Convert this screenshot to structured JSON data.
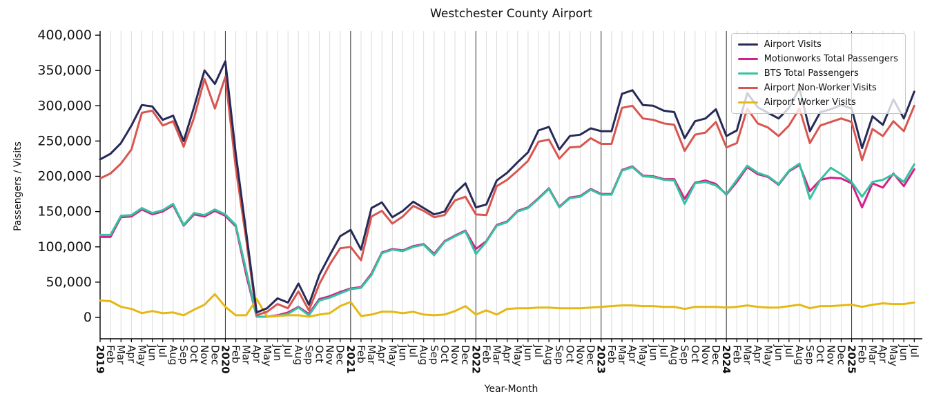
{
  "chart_data": {
    "type": "line",
    "title": "Westchester County Airport",
    "xlabel": "Year-Month",
    "ylabel": "Passengers / Visits",
    "legend_position": "upper right",
    "grid": "vertical gridline at every month; darker vertical line at each January (year boundary); no horizontal gridlines",
    "ylim": [
      0,
      400000
    ],
    "yticks": [
      0,
      50000,
      100000,
      150000,
      200000,
      250000,
      300000,
      350000,
      400000
    ],
    "ytick_labels": [
      "0",
      "50,000",
      "100,000",
      "150,000",
      "200,000",
      "250,000",
      "300,000",
      "350,000",
      "400,000"
    ],
    "x_tick_labels": [
      "2019",
      "Feb",
      "Mar",
      "Apr",
      "May",
      "Jun",
      "Jul",
      "Aug",
      "Sep",
      "Oct",
      "Nov",
      "Dec",
      "2020",
      "Feb",
      "Mar",
      "Apr",
      "May",
      "Jun",
      "Jul",
      "Aug",
      "Sep",
      "Oct",
      "Nov",
      "Dec",
      "2021",
      "Feb",
      "Mar",
      "Apr",
      "May",
      "Jun",
      "Jul",
      "Aug",
      "Sep",
      "Oct",
      "Nov",
      "Dec",
      "2022",
      "Feb",
      "Mar",
      "Apr",
      "May",
      "Jun",
      "Jul",
      "Aug",
      "Sep",
      "Oct",
      "Nov",
      "Dec",
      "2023",
      "Feb",
      "Mar",
      "Apr",
      "May",
      "Jun",
      "Jul",
      "Aug",
      "Sep",
      "Oct",
      "Nov",
      "Dec",
      "2024",
      "Feb",
      "Mar",
      "Apr",
      "May",
      "Jun",
      "Jul",
      "Aug",
      "Sep",
      "Oct",
      "Nov",
      "Dec",
      "2025",
      "Feb",
      "Mar",
      "Apr",
      "May",
      "Jun",
      "Jul"
    ],
    "series": [
      {
        "name": "Airport Visits",
        "color": "#262a56",
        "values": [
          224000,
          232000,
          247000,
          272000,
          301000,
          299000,
          280000,
          286000,
          250000,
          298000,
          350000,
          331000,
          363000,
          232000,
          120000,
          7000,
          13000,
          27000,
          21000,
          48000,
          18000,
          60000,
          88000,
          115000,
          124000,
          96000,
          155000,
          163000,
          142000,
          151000,
          164000,
          155000,
          146000,
          150000,
          176000,
          190000,
          156000,
          160000,
          194000,
          205000,
          220000,
          234000,
          265000,
          270000,
          238000,
          257000,
          259000,
          268000,
          264000,
          264000,
          317000,
          322000,
          301000,
          300000,
          293000,
          291000,
          254000,
          278000,
          282000,
          295000,
          257000,
          265000,
          318000,
          298000,
          290000,
          282000,
          297000,
          325000,
          264000,
          291000,
          295000,
          301000,
          296000,
          240000,
          285000,
          273000,
          309000,
          282000,
          320000
        ]
      },
      {
        "name": "Motionworks Total Passengers",
        "color": "#d4208c",
        "values": [
          114000,
          114000,
          142000,
          143000,
          153000,
          146000,
          150000,
          159000,
          130000,
          146000,
          143000,
          151000,
          144000,
          129000,
          60000,
          1000,
          1000,
          3000,
          7000,
          15000,
          5000,
          26000,
          30000,
          36000,
          41000,
          43000,
          62000,
          92000,
          97000,
          95000,
          101000,
          104000,
          90000,
          108000,
          116000,
          123000,
          97000,
          108000,
          131000,
          136000,
          151000,
          156000,
          169000,
          183000,
          157000,
          170000,
          172000,
          182000,
          175000,
          175000,
          209000,
          214000,
          201000,
          200000,
          196000,
          196000,
          168000,
          191000,
          194000,
          189000,
          174000,
          192000,
          213000,
          203000,
          199000,
          188000,
          207000,
          216000,
          179000,
          195000,
          198000,
          197000,
          190000,
          156000,
          190000,
          184000,
          204000,
          186000,
          210000
        ]
      },
      {
        "name": "BTS Total Passengers",
        "color": "#35c2a0",
        "values": [
          117000,
          117000,
          144000,
          145000,
          155000,
          148000,
          152000,
          161000,
          131000,
          148000,
          145000,
          153000,
          146000,
          131000,
          66000,
          1000,
          1000,
          2000,
          5000,
          14000,
          3000,
          24000,
          28000,
          34000,
          40000,
          42000,
          60000,
          91000,
          96000,
          94000,
          100000,
          103000,
          88000,
          107000,
          115000,
          122000,
          90000,
          107000,
          130000,
          135000,
          150000,
          155000,
          168000,
          182000,
          156000,
          169000,
          171000,
          181000,
          174000,
          174000,
          208000,
          213000,
          200000,
          199000,
          195000,
          194000,
          161000,
          190000,
          192000,
          187000,
          175000,
          195000,
          215000,
          205000,
          200000,
          189000,
          208000,
          218000,
          168000,
          195000,
          212000,
          203000,
          192000,
          171000,
          192000,
          195000,
          203000,
          192000,
          217000
        ]
      },
      {
        "name": "Airport Non-Worker Visits",
        "color": "#d9554f",
        "values": [
          197000,
          204000,
          218000,
          238000,
          290000,
          293000,
          272000,
          278000,
          242000,
          283000,
          338000,
          296000,
          341000,
          212000,
          110000,
          3000,
          8000,
          19000,
          13000,
          37000,
          10000,
          47000,
          75000,
          98000,
          100000,
          81000,
          143000,
          151000,
          133000,
          143000,
          158000,
          151000,
          142000,
          145000,
          166000,
          171000,
          146000,
          145000,
          186000,
          195000,
          208000,
          222000,
          249000,
          252000,
          225000,
          241000,
          242000,
          254000,
          246000,
          246000,
          297000,
          300000,
          282000,
          280000,
          275000,
          273000,
          236000,
          259000,
          262000,
          277000,
          241000,
          247000,
          296000,
          275000,
          269000,
          257000,
          272000,
          296000,
          247000,
          272000,
          277000,
          282000,
          277000,
          223000,
          267000,
          257000,
          278000,
          264000,
          300000
        ]
      },
      {
        "name": "Airport Worker Visits",
        "color": "#e5b813",
        "values": [
          24000,
          23000,
          15000,
          12000,
          6000,
          9000,
          6000,
          7000,
          3000,
          11000,
          18000,
          33000,
          15000,
          3000,
          3000,
          26000,
          1000,
          2000,
          3000,
          3000,
          1000,
          4000,
          6000,
          16000,
          22000,
          2000,
          4000,
          8000,
          8000,
          6000,
          8000,
          4000,
          3000,
          4000,
          9000,
          16000,
          4000,
          10000,
          4000,
          12000,
          13000,
          13000,
          14000,
          14000,
          13000,
          13000,
          13000,
          14000,
          15000,
          16000,
          17000,
          17000,
          16000,
          16000,
          15000,
          15000,
          12000,
          15000,
          15000,
          15000,
          14000,
          15000,
          17000,
          15000,
          14000,
          14000,
          16000,
          18000,
          13000,
          16000,
          16000,
          17000,
          18000,
          15000,
          18000,
          20000,
          19000,
          19000,
          21000
        ]
      }
    ],
    "draw_order_series_indices": [
      1,
      2,
      4,
      3,
      0
    ],
    "colors": {
      "month_gridline": "#dbdbdb",
      "year_line": "#303030",
      "axis": "#000000",
      "text": "#111111"
    }
  }
}
